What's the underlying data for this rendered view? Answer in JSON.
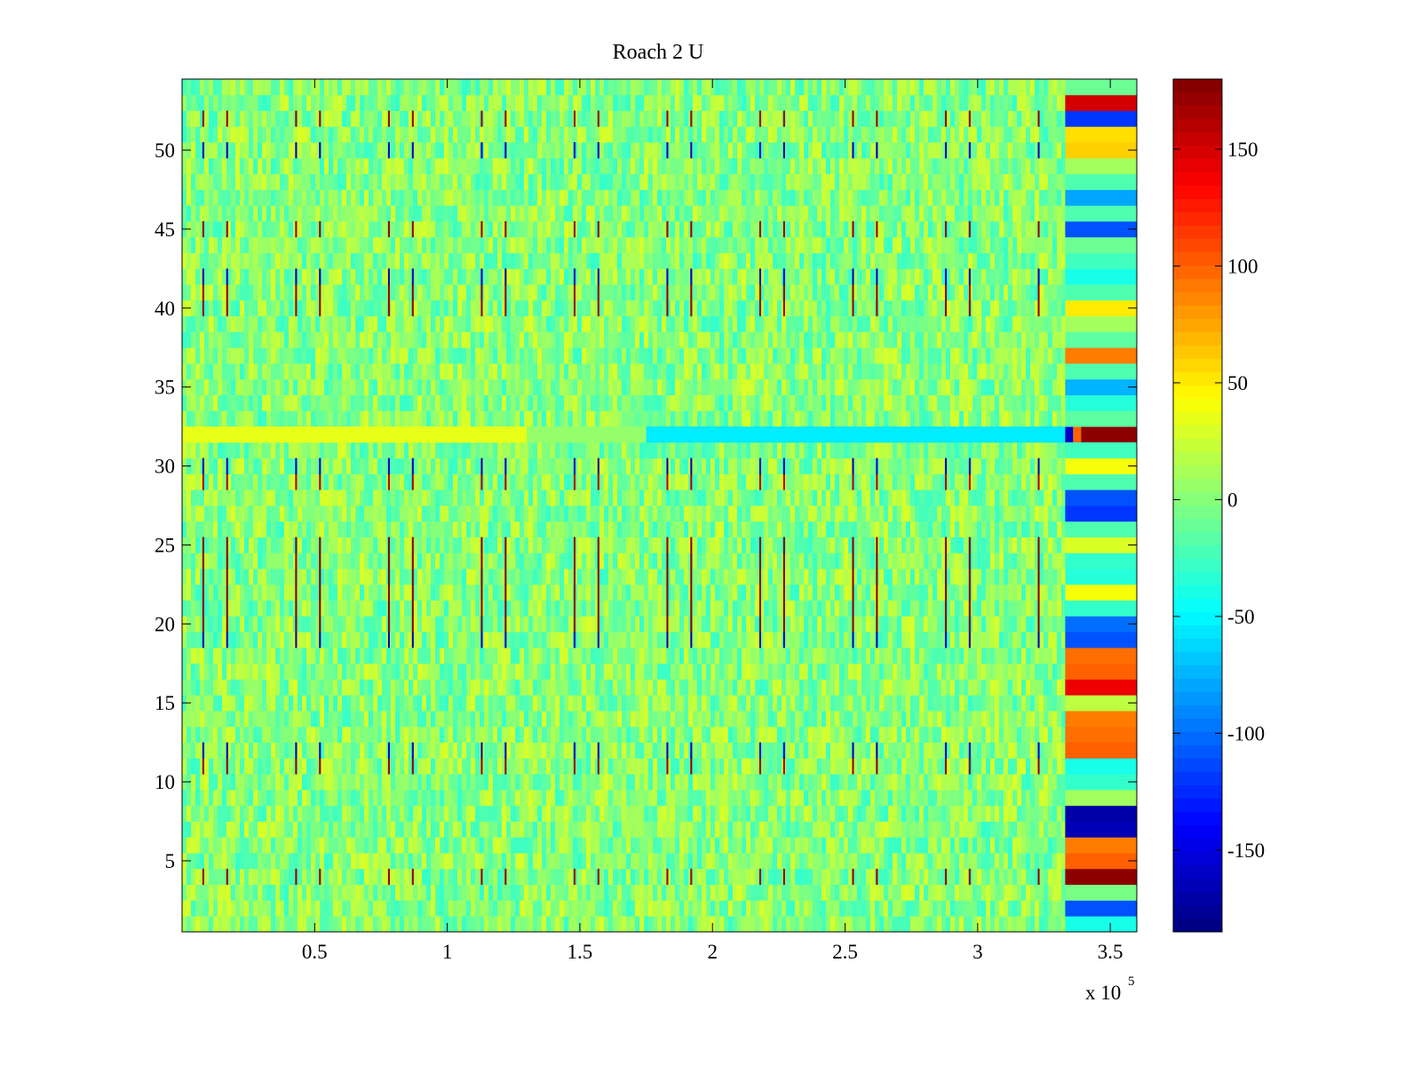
{
  "chart_data": {
    "type": "heatmap",
    "title": "Roach 2 U",
    "xlabel": "",
    "ylabel": "",
    "x_multiplier_label": "x 10",
    "x_multiplier_exponent": "5",
    "xlim": [
      0,
      360000
    ],
    "ylim": [
      0.5,
      54.5
    ],
    "n_rows": 54,
    "x_ticks": [
      {
        "value": 50000,
        "label": "0.5"
      },
      {
        "value": 100000,
        "label": "1"
      },
      {
        "value": 150000,
        "label": "1.5"
      },
      {
        "value": 200000,
        "label": "2"
      },
      {
        "value": 250000,
        "label": "2.5"
      },
      {
        "value": 300000,
        "label": "3"
      },
      {
        "value": 350000,
        "label": "3.5"
      }
    ],
    "y_ticks": [
      {
        "value": 5,
        "label": "5"
      },
      {
        "value": 10,
        "label": "10"
      },
      {
        "value": 15,
        "label": "15"
      },
      {
        "value": 20,
        "label": "20"
      },
      {
        "value": 25,
        "label": "25"
      },
      {
        "value": 30,
        "label": "30"
      },
      {
        "value": 35,
        "label": "35"
      },
      {
        "value": 40,
        "label": "40"
      },
      {
        "value": 45,
        "label": "45"
      },
      {
        "value": 50,
        "label": "50"
      }
    ],
    "colorbar": {
      "colormap": "jet",
      "clim": [
        -185,
        180
      ],
      "ticks": [
        {
          "value": 150,
          "label": "150"
        },
        {
          "value": 100,
          "label": "100"
        },
        {
          "value": 50,
          "label": "50"
        },
        {
          "value": 0,
          "label": "0"
        },
        {
          "value": -50,
          "label": "-50"
        },
        {
          "value": -100,
          "label": "-100"
        },
        {
          "value": -150,
          "label": "-150"
        }
      ]
    },
    "background_range": [
      -30,
      30
    ],
    "periodic_stripes": {
      "x_positions": [
        8000,
        17000,
        43000,
        52000,
        78000,
        87000,
        113000,
        122000,
        148000,
        157000,
        183000,
        192000,
        218000,
        227000,
        253000,
        262000,
        288000,
        297000,
        323000
      ],
      "values_by_row_group": [
        {
          "rows": [
            4,
            4
          ],
          "value": 170
        },
        {
          "rows": [
            11,
            11
          ],
          "value": 170
        },
        {
          "rows": [
            12,
            12
          ],
          "value": -160
        },
        {
          "rows": [
            19,
            19
          ],
          "value": -160
        },
        {
          "rows": [
            20,
            25
          ],
          "value": 175
        },
        {
          "rows": [
            29,
            29
          ],
          "value": 160
        },
        {
          "rows": [
            30,
            30
          ],
          "value": -160
        },
        {
          "rows": [
            40,
            41
          ],
          "value": 170
        },
        {
          "rows": [
            42,
            42
          ],
          "value": -160
        },
        {
          "rows": [
            45,
            45
          ],
          "value": 170
        },
        {
          "rows": [
            50,
            50
          ],
          "value": -160
        },
        {
          "rows": [
            52,
            52
          ],
          "value": 170
        }
      ]
    },
    "row_32_band": [
      {
        "x_range": [
          0,
          130000
        ],
        "value": 35
      },
      {
        "x_range": [
          130000,
          175000
        ],
        "value": 5
      },
      {
        "x_range": [
          175000,
          333000
        ],
        "value": -55
      },
      {
        "x_range": [
          333000,
          336000
        ],
        "value": -160
      },
      {
        "x_range": [
          336000,
          339000
        ],
        "value": 100
      },
      {
        "x_range": [
          339000,
          360000
        ],
        "value": 175
      }
    ],
    "right_block": {
      "x_range": [
        333000,
        360000
      ],
      "rows": [
        {
          "row": 1,
          "value": -40
        },
        {
          "row": 2,
          "value": -110
        },
        {
          "row": 3,
          "value": -5
        },
        {
          "row": 4,
          "value": 175
        },
        {
          "row": 5,
          "value": 100
        },
        {
          "row": 6,
          "value": 90
        },
        {
          "row": 7,
          "value": -165
        },
        {
          "row": 8,
          "value": -170
        },
        {
          "row": 9,
          "value": 10
        },
        {
          "row": 10,
          "value": -30
        },
        {
          "row": 11,
          "value": -40
        },
        {
          "row": 12,
          "value": 100
        },
        {
          "row": 13,
          "value": 95
        },
        {
          "row": 14,
          "value": 90
        },
        {
          "row": 15,
          "value": 20
        },
        {
          "row": 16,
          "value": 140
        },
        {
          "row": 17,
          "value": 100
        },
        {
          "row": 18,
          "value": 95
        },
        {
          "row": 19,
          "value": -110
        },
        {
          "row": 20,
          "value": -100
        },
        {
          "row": 21,
          "value": -30
        },
        {
          "row": 22,
          "value": 40
        },
        {
          "row": 23,
          "value": -35
        },
        {
          "row": 24,
          "value": -30
        },
        {
          "row": 25,
          "value": 30
        },
        {
          "row": 26,
          "value": -20
        },
        {
          "row": 27,
          "value": -120
        },
        {
          "row": 28,
          "value": -110
        },
        {
          "row": 29,
          "value": -20
        },
        {
          "row": 30,
          "value": 40
        },
        {
          "row": 31,
          "value": -25
        },
        {
          "row": 33,
          "value": -15
        },
        {
          "row": 34,
          "value": -35
        },
        {
          "row": 35,
          "value": -75
        },
        {
          "row": 36,
          "value": -20
        },
        {
          "row": 37,
          "value": 90
        },
        {
          "row": 38,
          "value": -15
        },
        {
          "row": 39,
          "value": 10
        },
        {
          "row": 40,
          "value": 50
        },
        {
          "row": 41,
          "value": -20
        },
        {
          "row": 42,
          "value": -40
        },
        {
          "row": 43,
          "value": -25
        },
        {
          "row": 44,
          "value": -10
        },
        {
          "row": 45,
          "value": -110
        },
        {
          "row": 46,
          "value": -20
        },
        {
          "row": 47,
          "value": -80
        },
        {
          "row": 48,
          "value": -20
        },
        {
          "row": 49,
          "value": 10
        },
        {
          "row": 50,
          "value": 60
        },
        {
          "row": 51,
          "value": 55
        },
        {
          "row": 52,
          "value": -120
        },
        {
          "row": 53,
          "value": 150
        },
        {
          "row": 54,
          "value": -10
        }
      ]
    }
  }
}
